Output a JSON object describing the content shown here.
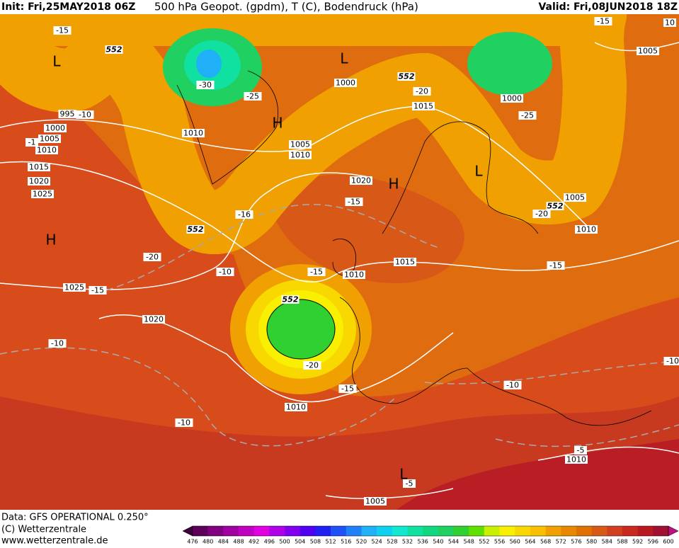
{
  "header": {
    "init": "Init: Fri,25MAY2018 06Z",
    "title": "500 hPa Geopot. (gpdm), T (C), Bodendruck (hPa)",
    "valid": "Valid: Fri,08JUN2018 18Z"
  },
  "map_labels": [
    "-15",
    "L",
    "552",
    "-30",
    "-25",
    "L",
    "1000",
    "552",
    "-20",
    "1015",
    "H",
    "1010",
    "1005",
    "1010",
    "995",
    "-10",
    "1000",
    "1005",
    "-1",
    "1010",
    "1015",
    "1020",
    "1025",
    "H",
    "-15",
    "10",
    "1005",
    "1000",
    "-25",
    "L",
    "H",
    "1020",
    "-15",
    "-16",
    "552",
    "1005",
    "552",
    "-20",
    "1010",
    "-20",
    "-10",
    "-15",
    "1010",
    "1015",
    "-15",
    "1025",
    "-15",
    "552",
    "1020",
    "-10",
    "-20",
    "-15",
    "-10",
    "1010",
    "-10",
    "-5",
    "1010",
    "L",
    "-5",
    "1005",
    "-10"
  ],
  "footer": {
    "data": "Data: GFS OPERATIONAL 0.250°",
    "copyright": "(C) Wetterzentrale",
    "url": "www.wetterzentrale.de"
  },
  "colorbar": {
    "ticks": [
      476,
      480,
      484,
      488,
      492,
      496,
      500,
      504,
      508,
      512,
      516,
      520,
      524,
      528,
      532,
      536,
      540,
      544,
      548,
      552,
      556,
      560,
      564,
      568,
      572,
      576,
      580,
      584,
      588,
      592,
      596,
      600
    ],
    "colors": [
      "#3c003c",
      "#5c005c",
      "#800080",
      "#a000a0",
      "#c000c0",
      "#e000e0",
      "#b000e8",
      "#8000f0",
      "#5000f0",
      "#2020f0",
      "#2050f8",
      "#2080f8",
      "#20b0f8",
      "#10d0f0",
      "#10e8d0",
      "#10e0a0",
      "#10d880",
      "#20d060",
      "#30d030",
      "#60e000",
      "#c8f000",
      "#f8f000",
      "#f8d800",
      "#f8c000",
      "#f0a000",
      "#e88800",
      "#e07000",
      "#d85818",
      "#d04020",
      "#c82820",
      "#b81820",
      "#a01030",
      "#c01080"
    ]
  }
}
